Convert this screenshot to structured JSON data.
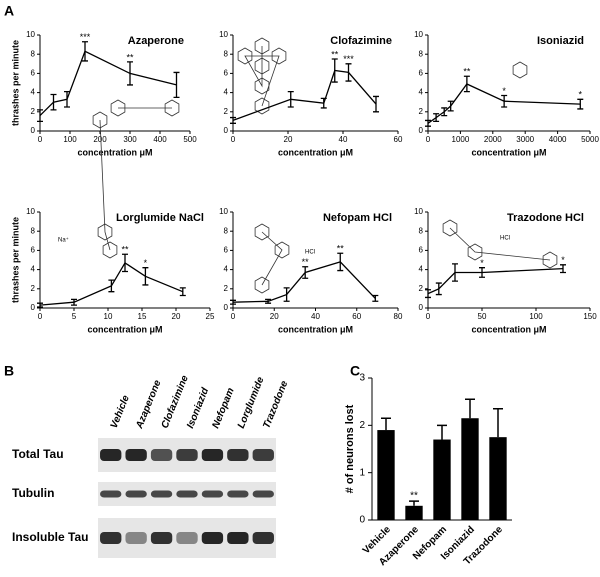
{
  "panel_labels": [
    "A",
    "B",
    "C"
  ],
  "blot": {
    "lanes": [
      "Vehicle",
      "Azaperone",
      "Clofazimine",
      "Isoniazid",
      "Nefopam",
      "Lorglumide",
      "Trazodone"
    ],
    "rows": [
      "Total Tau",
      "Tubulin",
      "Insoluble Tau"
    ]
  },
  "chart_data": [
    {
      "type": "line",
      "title": "Azaperone",
      "xlabel": "concentration μM",
      "ylabel": "thrashes per minute",
      "x": [
        0,
        45,
        90,
        150,
        300,
        455
      ],
      "values": [
        1.6,
        3.0,
        3.3,
        8.3,
        6.0,
        4.8
      ],
      "errors": [
        0.6,
        0.8,
        0.8,
        1.0,
        1.2,
        1.3
      ],
      "significance": [
        null,
        null,
        null,
        "***",
        "**",
        null
      ],
      "color": "#000000",
      "xlim": [
        0,
        500
      ],
      "xticks": [
        0,
        100,
        200,
        300,
        400,
        500
      ],
      "ylim": [
        0,
        10
      ],
      "yticks": [
        0,
        2,
        4,
        6,
        8,
        10
      ]
    },
    {
      "type": "line",
      "title": "Clofazimine",
      "xlabel": "concentration μM",
      "x": [
        0,
        21,
        33,
        37,
        42,
        52
      ],
      "values": [
        1.1,
        3.3,
        2.9,
        6.3,
        6.1,
        2.8
      ],
      "errors": [
        0.3,
        0.8,
        0.5,
        1.2,
        0.9,
        0.8
      ],
      "significance": [
        null,
        null,
        null,
        "**",
        "***",
        null
      ],
      "color": "#000000",
      "xlim": [
        0,
        60
      ],
      "xticks": [
        0,
        20,
        40,
        60
      ],
      "ylim": [
        0,
        10
      ],
      "yticks": [
        0,
        2,
        4,
        6,
        8,
        10
      ]
    },
    {
      "type": "line",
      "title": "Isoniazid",
      "xlabel": "concentration μM",
      "x": [
        0,
        250,
        500,
        700,
        1200,
        2350,
        4700
      ],
      "values": [
        0.8,
        1.4,
        2.0,
        2.6,
        4.9,
        3.1,
        2.8
      ],
      "errors": [
        0.3,
        0.4,
        0.4,
        0.5,
        0.8,
        0.6,
        0.5
      ],
      "significance": [
        null,
        null,
        null,
        null,
        "**",
        "*",
        "*"
      ],
      "color": "#000000",
      "xlim": [
        0,
        5000
      ],
      "xticks": [
        0,
        1000,
        2000,
        3000,
        4000,
        5000
      ],
      "ylim": [
        0,
        10
      ],
      "yticks": [
        0,
        2,
        4,
        6,
        8,
        10
      ]
    },
    {
      "type": "line",
      "title": "Lorglumide NaCl",
      "xlabel": "concentration μM",
      "ylabel": "thrashes per minute",
      "annotations": [
        "Na⁺"
      ],
      "x": [
        0,
        5,
        10.5,
        12.5,
        15.5,
        21
      ],
      "values": [
        0.3,
        0.6,
        2.3,
        4.7,
        3.3,
        1.7
      ],
      "errors": [
        0.2,
        0.3,
        0.6,
        0.9,
        0.9,
        0.4
      ],
      "significance": [
        null,
        null,
        null,
        "**",
        "*",
        null
      ],
      "color": "#000000",
      "xlim": [
        0,
        25
      ],
      "xticks": [
        0,
        5,
        10,
        15,
        20,
        25
      ],
      "ylim": [
        0,
        10
      ],
      "yticks": [
        0,
        2,
        4,
        6,
        8,
        10
      ]
    },
    {
      "type": "line",
      "title": "Nefopam HCl",
      "xlabel": "concentration μM",
      "annotations": [
        "HCl"
      ],
      "x": [
        0,
        17,
        26,
        35,
        52,
        69
      ],
      "values": [
        0.6,
        0.7,
        1.4,
        3.7,
        4.8,
        1.0
      ],
      "errors": [
        0.2,
        0.2,
        0.7,
        0.6,
        0.9,
        0.3
      ],
      "significance": [
        null,
        null,
        null,
        "**",
        "**",
        null
      ],
      "color": "#000000",
      "xlim": [
        0,
        80
      ],
      "xticks": [
        0,
        20,
        40,
        60,
        80
      ],
      "ylim": [
        0,
        10
      ],
      "yticks": [
        0,
        2,
        4,
        6,
        8,
        10
      ]
    },
    {
      "type": "line",
      "title": "Trazodone HCl",
      "xlabel": "concentration μM",
      "annotations": [
        "HCl"
      ],
      "x": [
        0,
        10,
        25,
        50,
        125
      ],
      "values": [
        1.5,
        2.0,
        3.7,
        3.7,
        4.1
      ],
      "errors": [
        0.4,
        0.6,
        0.9,
        0.5,
        0.4
      ],
      "significance": [
        null,
        null,
        null,
        "*",
        "*"
      ],
      "color": "#000000",
      "xlim": [
        0,
        150
      ],
      "xticks": [
        0,
        50,
        100,
        150
      ],
      "ylim": [
        0,
        10
      ],
      "yticks": [
        0,
        2,
        4,
        6,
        8,
        10
      ]
    },
    {
      "type": "bar",
      "ylabel": "# of neurons lost",
      "categories": [
        "Vehicle",
        "Azaperone",
        "Nefopam",
        "Isoniazid",
        "Trazodone"
      ],
      "values": [
        1.9,
        0.3,
        1.7,
        2.15,
        1.75
      ],
      "errors": [
        0.25,
        0.1,
        0.3,
        0.4,
        0.6
      ],
      "significance": [
        null,
        "**",
        null,
        null,
        null
      ],
      "color": "#000000",
      "ylim": [
        0,
        3
      ],
      "yticks": [
        0,
        1,
        2,
        3
      ]
    }
  ]
}
